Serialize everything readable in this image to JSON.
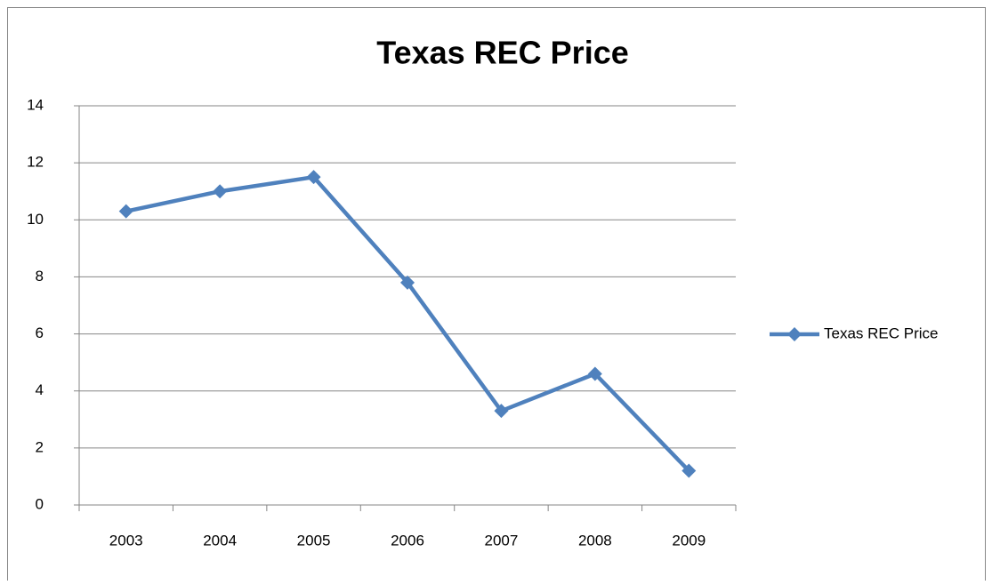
{
  "chart_data": {
    "type": "line",
    "title": "Texas REC Price",
    "categories": [
      "2003",
      "2004",
      "2005",
      "2006",
      "2007",
      "2008",
      "2009"
    ],
    "series": [
      {
        "name": "Texas REC Price",
        "color": "#4f81bd",
        "values": [
          10.3,
          11.0,
          11.5,
          7.8,
          3.3,
          4.6,
          1.2
        ]
      }
    ],
    "ylim": [
      0,
      14
    ],
    "yticks": [
      0,
      2,
      4,
      6,
      8,
      10,
      12,
      14
    ],
    "grid": true,
    "legend": "right"
  }
}
